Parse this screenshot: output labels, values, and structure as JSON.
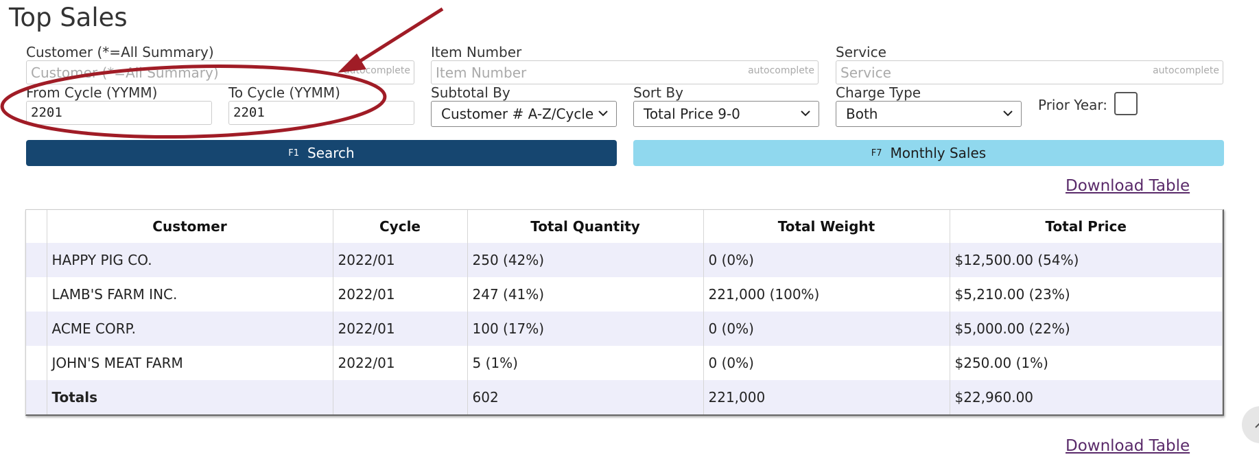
{
  "page": {
    "title": "Top Sales"
  },
  "filters": {
    "customer": {
      "label": "Customer (*=All Summary)",
      "placeholder": "Customer (*=All Summary)",
      "hint": "autocomplete"
    },
    "item_number": {
      "label": "Item Number",
      "placeholder": "Item Number",
      "hint": "autocomplete"
    },
    "service": {
      "label": "Service",
      "placeholder": "Service",
      "hint": "autocomplete"
    },
    "from_cycle": {
      "label": "From Cycle (YYMM)",
      "value": "2201"
    },
    "to_cycle": {
      "label": "To Cycle (YYMM)",
      "value": "2201"
    },
    "subtotal_by": {
      "label": "Subtotal By",
      "value": "Customer # A-Z/Cycle"
    },
    "sort_by": {
      "label": "Sort By",
      "value": "Total Price 9-0"
    },
    "charge_type": {
      "label": "Charge Type",
      "value": "Both"
    },
    "prior_year": {
      "label": "Prior Year:",
      "checked": false
    }
  },
  "actions": {
    "search": {
      "key": "F1",
      "label": "Search"
    },
    "monthly": {
      "key": "F7",
      "label": "Monthly Sales"
    },
    "download_label": "Download Table"
  },
  "table": {
    "headers": [
      "Customer",
      "Cycle",
      "Total Quantity",
      "Total Weight",
      "Total Price"
    ],
    "rows": [
      [
        "HAPPY PIG CO.",
        "2022/01",
        "250 (42%)",
        "0 (0%)",
        "$12,500.00 (54%)"
      ],
      [
        "LAMB'S FARM INC.",
        "2022/01",
        "247 (41%)",
        "221,000 (100%)",
        "$5,210.00 (23%)"
      ],
      [
        "ACME CORP.",
        "2022/01",
        "100 (17%)",
        "0 (0%)",
        "$5,000.00 (22%)"
      ],
      [
        "JOHN'S MEAT FARM",
        "2022/01",
        "5 (1%)",
        "0 (0%)",
        "$250.00 (1%)"
      ]
    ],
    "totals": [
      "Totals",
      "",
      "602",
      "221,000",
      "$22,960.00"
    ]
  },
  "icons": {
    "select_caret": "chevron-down-icon",
    "scroll_top": "chevron-up-icon"
  },
  "colors": {
    "primary": "#164670",
    "info": "#90d8ee",
    "annotation": "#a01c26",
    "row_alt": "#eeeefa"
  }
}
